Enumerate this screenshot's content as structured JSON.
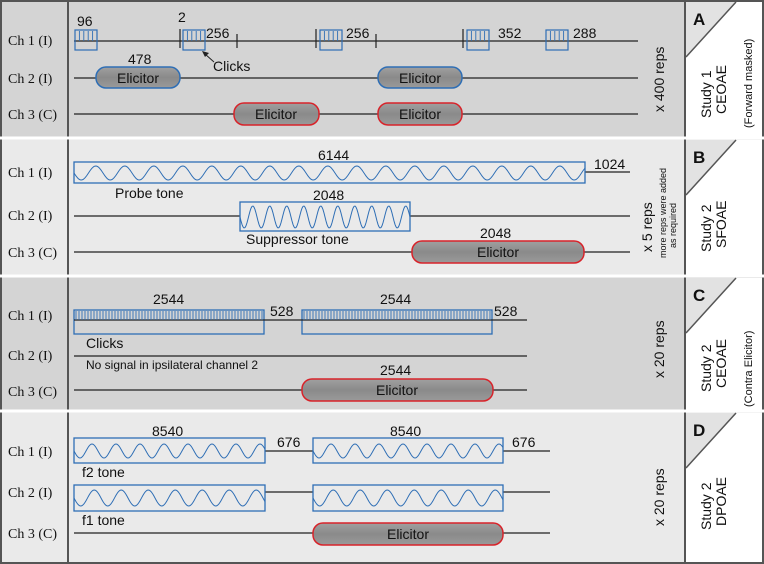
{
  "channels": {
    "ch1": "Ch 1 (I)",
    "ch2": "Ch 2 (I)",
    "ch3": "Ch 3 (C)"
  },
  "colors": {
    "blue": "#2e6eb5",
    "red": "#d8232a",
    "elicitor_fill": "#8c8c8c",
    "panel_dark": "#d4d4d4",
    "panel_light": "#eaeaea"
  },
  "panels": [
    {
      "letter": "A",
      "study": "Study 1",
      "method": "CEOAE",
      "note": "(Forward masked)",
      "reps": "x 400 reps",
      "ch1_labels": {
        "n96": "96",
        "n2": "2",
        "n256a": "256",
        "n256b": "256",
        "n352": "352",
        "n288": "288",
        "clicks": "Clicks"
      },
      "ch2_labels": {
        "n478": "478",
        "elicitor_1": "Elicitor",
        "elicitor_2": "Elicitor"
      },
      "ch3_labels": {
        "elicitor_1": "Elicitor",
        "elicitor_2": "Elicitor"
      }
    },
    {
      "letter": "B",
      "study": "Study 2",
      "method": "SFOAE",
      "reps": "x 5 reps",
      "reps_note_1": "more reps were added",
      "reps_note_2": "as required",
      "ch1_labels": {
        "n6144": "6144",
        "n1024": "1024",
        "tone": "Probe tone"
      },
      "ch2_labels": {
        "n2048": "2048",
        "tone": "Suppressor tone"
      },
      "ch3_labels": {
        "n2048": "2048",
        "elicitor": "Elicitor"
      }
    },
    {
      "letter": "C",
      "study": "Study 2",
      "method": "CEOAE",
      "note": "(Contra Elicitor)",
      "reps": "x 20 reps",
      "ch1_labels": {
        "n2544a": "2544",
        "n528a": "528",
        "n2544b": "2544",
        "n528b": "528",
        "clicks": "Clicks"
      },
      "ch2_labels": {
        "nosignal": "No signal in ipsilateral channel 2"
      },
      "ch3_labels": {
        "n2544": "2544",
        "elicitor": "Elicitor"
      }
    },
    {
      "letter": "D",
      "study": "Study 2",
      "method": "DPOAE",
      "reps": "x 20 reps",
      "ch1_labels": {
        "n8540a": "8540",
        "n676a": "676",
        "n8540b": "8540",
        "n676b": "676",
        "tone": "f2 tone"
      },
      "ch2_labels": {
        "tone": "f1 tone"
      },
      "ch3_labels": {
        "elicitor": "Elicitor"
      }
    }
  ]
}
